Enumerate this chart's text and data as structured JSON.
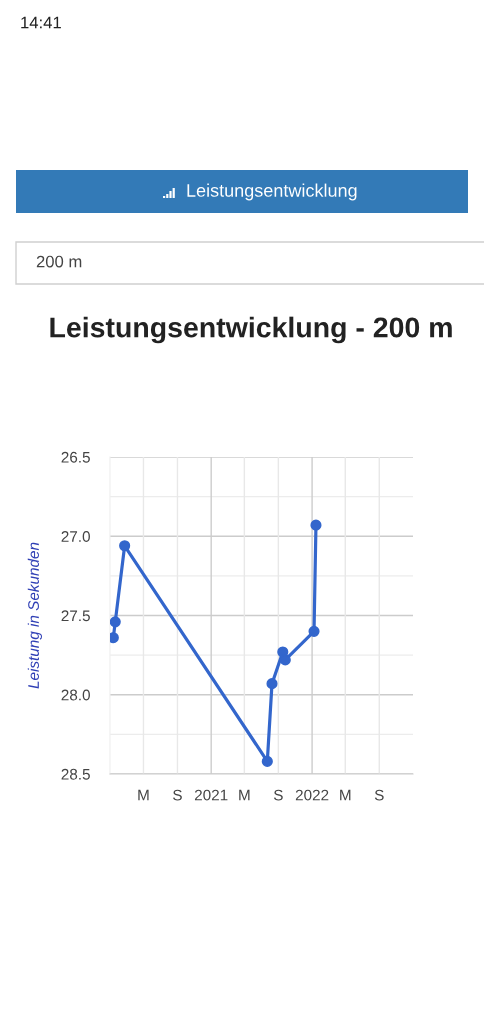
{
  "chart_data": {
    "type": "line",
    "title": "Leistungsentwicklung - 200 m",
    "ylabel": "Leistung in Sekunden",
    "annotations": [
      "14:41",
      "Leistungsentwicklung",
      "200 m"
    ],
    "x": [
      "2020-01-13",
      "2020-01-20",
      "2020-02-23",
      "2021-07-23",
      "2021-08-09",
      "2021-09-17",
      "2021-09-26",
      "2022-01-08",
      "2022-01-15"
    ],
    "series": [
      {
        "color": "#3366cc",
        "values": [
          27.64,
          27.54,
          27.06,
          28.42,
          27.93,
          27.73,
          27.78,
          27.6,
          26.93
        ]
      }
    ],
    "xlim": [
      "2020-01",
      "2023-01"
    ],
    "xticks": [
      {
        "value": "2020-05",
        "label": "M"
      },
      {
        "value": "2020-09",
        "label": "S"
      },
      {
        "value": "2021",
        "label": "2021"
      },
      {
        "value": "2021-05",
        "label": "M"
      },
      {
        "value": "2021-09",
        "label": "S"
      },
      {
        "value": "2022",
        "label": "2022"
      },
      {
        "value": "2022-05",
        "label": "M"
      },
      {
        "value": "2022-09",
        "label": "S"
      }
    ],
    "ylim": [
      28.5,
      26.5
    ],
    "yticks": [
      26.5,
      {
        "value": 26.75,
        "label": null
      },
      {
        "value": 27,
        "label": "27.0"
      },
      {
        "value": 27.25,
        "label": null
      },
      27.5,
      {
        "value": 27.75,
        "label": null
      },
      {
        "value": 28,
        "label": "28.0"
      },
      {
        "value": 28.25,
        "label": null
      },
      28.5
    ],
    "grid": true,
    "marker": "circle",
    "line_style": "solid"
  }
}
